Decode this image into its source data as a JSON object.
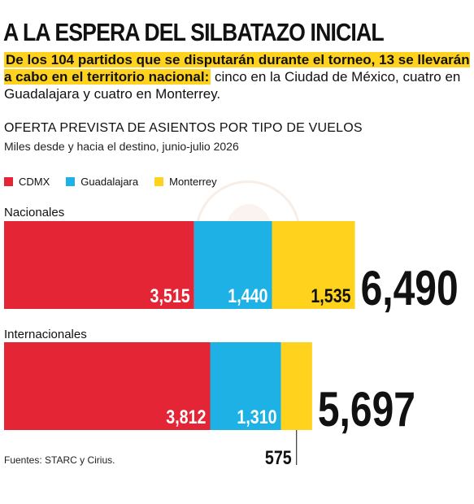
{
  "header": {
    "title": "A LA ESPERA DEL SILBATAZO INICIAL",
    "intro_highlight": "De los 104 partidos que se disputarán durante el torneo, 13 se llevarán a cabo en el territorio nacional:",
    "intro_rest": " cinco en la Ciudad de México, cuatro en Guadalajara y cuatro en Monterrey.",
    "subtitle": "OFERTA PREVISTA DE ASIENTOS POR TIPO DE VUELOS",
    "note": "Miles desde y hacia el destino, junio-julio 2026"
  },
  "legend": [
    {
      "label": "CDMX",
      "color": "#e42535"
    },
    {
      "label": "Guadalajara",
      "color": "#1db1e6"
    },
    {
      "label": "Monterrey",
      "color": "#ffd21e"
    }
  ],
  "source": "Fuentes: STARC y Cirius.",
  "chart_data": {
    "type": "bar",
    "orientation": "horizontal",
    "stacked": true,
    "units": "miles de asientos",
    "categories": [
      "Nacionales",
      "Internacionales"
    ],
    "series": [
      {
        "name": "CDMX",
        "color": "#e42535",
        "values": [
          3515,
          3812
        ],
        "labels": [
          "3,515",
          "3,812"
        ]
      },
      {
        "name": "Guadalajara",
        "color": "#1db1e6",
        "values": [
          1440,
          1310
        ],
        "labels": [
          "1,440",
          "1,310"
        ]
      },
      {
        "name": "Monterrey",
        "color": "#ffd21e",
        "values": [
          1535,
          575
        ],
        "labels": [
          "1,535",
          "575"
        ]
      }
    ],
    "totals": [
      6490,
      5697
    ],
    "total_labels": [
      "6,490",
      "5,697"
    ],
    "legend_position": "top-left"
  }
}
